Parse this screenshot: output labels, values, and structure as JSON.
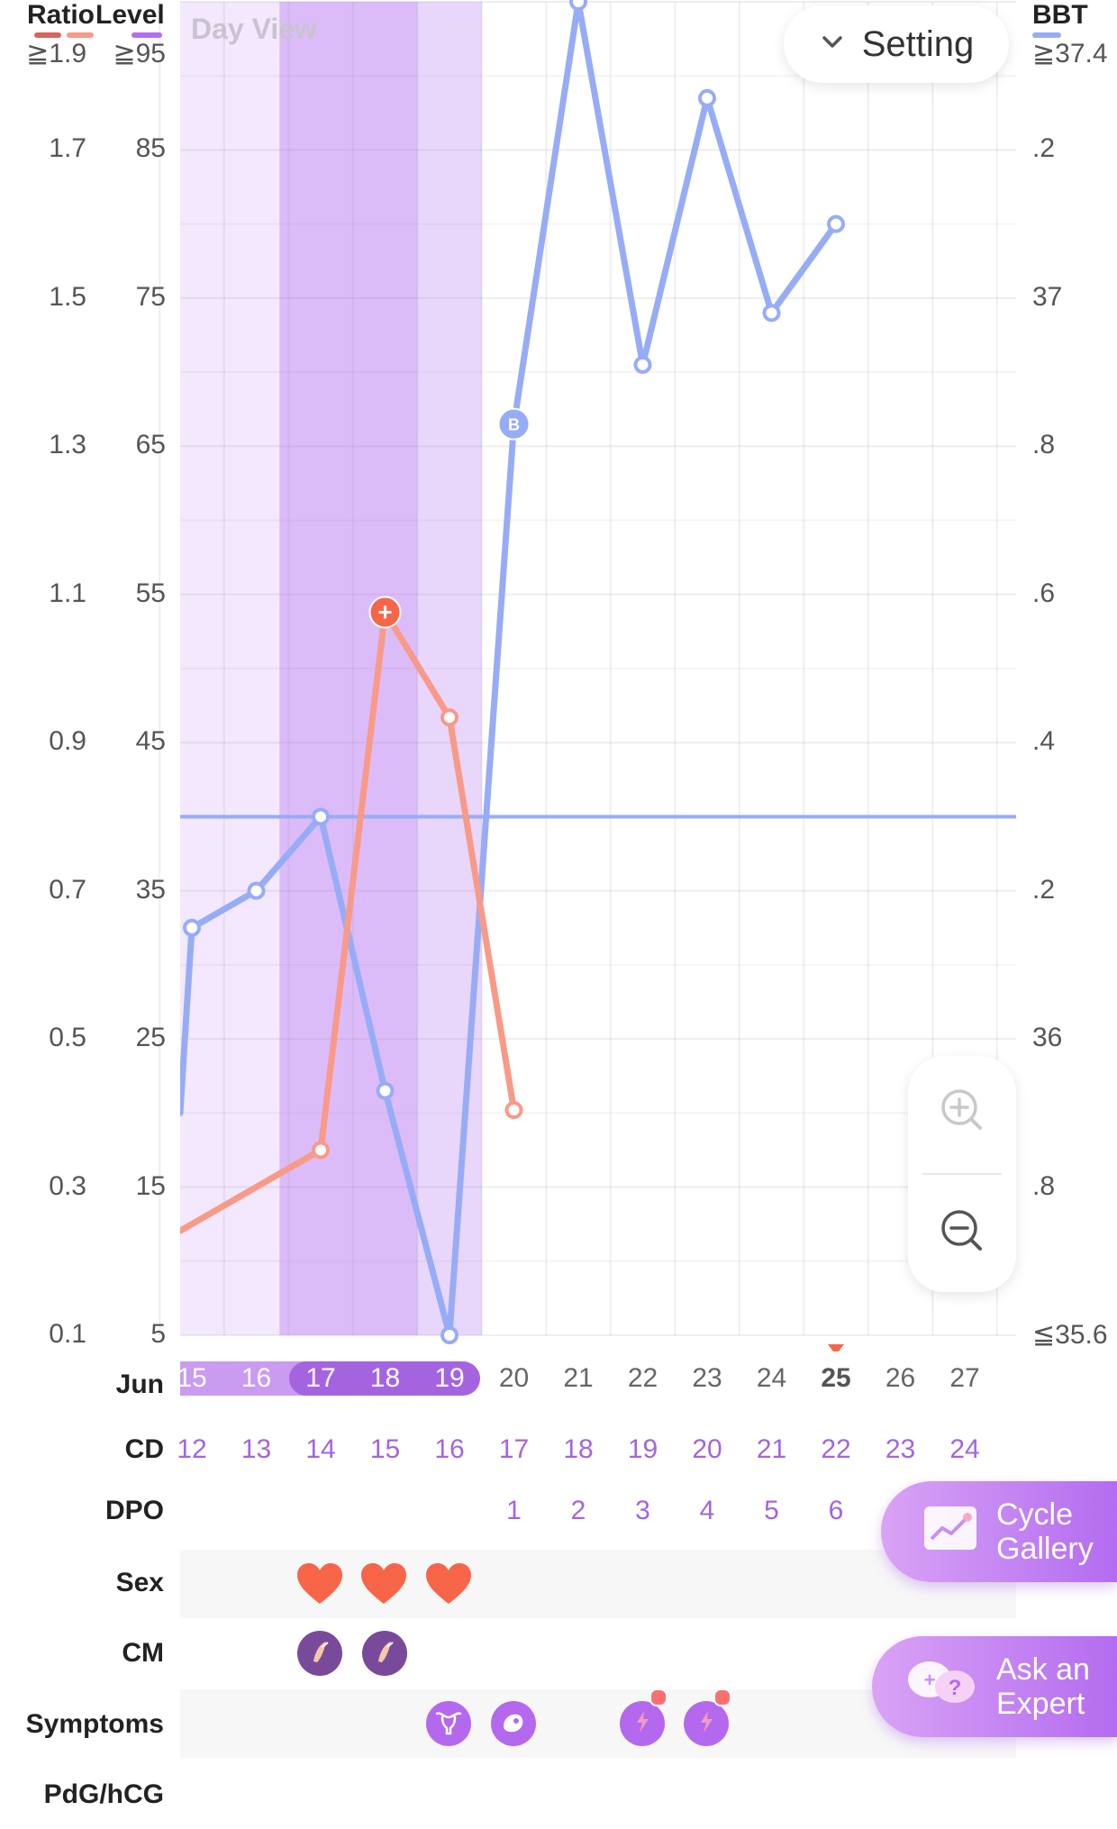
{
  "header": {
    "ratio_label": "Ratio",
    "level_label": "Level",
    "view_label": "Day View",
    "bbt_label": "BBT",
    "setting_label": "Setting"
  },
  "colors": {
    "bbt": "#97acf7",
    "lh": "#f89a88",
    "ratio_legend": "#d9655e",
    "level_legend": "#b26df0",
    "fertile": "#e9d6fb",
    "ovulation": "#dcbcf8",
    "accent": "#a464e0",
    "heart": "#f76549"
  },
  "y_axes": {
    "ratio_ticks": [
      "≧1.9",
      "1.7",
      "1.5",
      "1.3",
      "1.1",
      "0.9",
      "0.7",
      "0.5",
      "0.3",
      "0.1"
    ],
    "level_ticks": [
      "≧95",
      "85",
      "75",
      "65",
      "55",
      "45",
      "35",
      "25",
      "15",
      "5"
    ],
    "bbt_ticks": [
      "≧37.4",
      ".2",
      "37",
      ".8",
      ".6",
      ".4",
      ".2",
      "36",
      ".8",
      "≦35.6"
    ]
  },
  "chart_data": {
    "type": "line",
    "x": [
      15,
      16,
      17,
      18,
      19,
      20,
      21,
      22,
      23,
      24,
      25,
      26,
      27
    ],
    "month": "Jun",
    "today": 25,
    "series": [
      {
        "name": "BBT",
        "axis": "right",
        "points": [
          [
            15,
            36.15
          ],
          [
            16,
            36.2
          ],
          [
            17,
            36.3
          ],
          [
            18,
            35.93
          ],
          [
            19,
            35.6
          ],
          [
            20,
            36.83
          ],
          [
            21,
            37.4
          ],
          [
            22,
            36.91
          ],
          [
            23,
            37.27
          ],
          [
            24,
            36.98
          ],
          [
            25,
            37.1
          ]
        ],
        "markers": {
          "20": "B"
        }
      },
      {
        "name": "LH",
        "axis": "level",
        "points": [
          [
            14.8,
            12
          ],
          [
            17,
            17.5
          ],
          [
            18,
            53.8
          ],
          [
            19,
            46.7
          ],
          [
            20,
            20.2
          ]
        ],
        "markers": {
          "18": "+"
        }
      }
    ],
    "coverline": 36.3,
    "axis_ranges": {
      "ratio": [
        0.1,
        1.9
      ],
      "level": [
        5,
        95
      ],
      "bbt": [
        35.6,
        37.4
      ]
    },
    "fertile_window": [
      15,
      19
    ],
    "ovulation_window": [
      17,
      18
    ],
    "grid": true
  },
  "rows": {
    "jun_label": "Jun",
    "cd_label": "CD",
    "cd": [
      "12",
      "13",
      "14",
      "15",
      "16",
      "17",
      "18",
      "19",
      "20",
      "21",
      "22",
      "23",
      "24"
    ],
    "dpo_label": "DPO",
    "dpo": [
      "1",
      "2",
      "3",
      "4",
      "5",
      "6"
    ],
    "sex_label": "Sex",
    "cm_label": "CM",
    "symptoms_label": "Symptoms",
    "pdg_label": "PdG/hCG"
  },
  "buttons": {
    "cycle_gallery": "Cycle Gallery",
    "ask_expert": "Ask an Expert"
  },
  "icons": {
    "setting": "chevron-down-icon",
    "zoom_in": "zoom-in-icon",
    "zoom_out": "zoom-out-icon",
    "gallery": "chart-image-icon",
    "expert": "chat-bubbles-icon",
    "sex": "heart-icon",
    "cm": "cervical-mucus-icon",
    "symptoms": [
      "uterus-icon",
      "baby-icon",
      "cramp-icon",
      "cramp-icon"
    ]
  }
}
